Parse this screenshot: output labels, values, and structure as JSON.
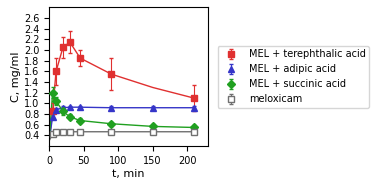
{
  "chart_data": {
    "type": "line",
    "xlabel": "t, min",
    "ylabel": "C, mg/ml",
    "xlim": [
      0,
      230
    ],
    "ylim": [
      0.2,
      2.8
    ],
    "xticks": [
      0,
      50,
      100,
      150,
      200
    ],
    "yticks": [
      0.4,
      0.6,
      0.8,
      1.0,
      1.2,
      1.4,
      1.6,
      1.8,
      2.0,
      2.2,
      2.4,
      2.6
    ],
    "grid": false,
    "legend": "center left",
    "series": [
      {
        "name": "MEL + terephthalic acid",
        "color": "#e03030",
        "marker": "square",
        "x": [
          5,
          10,
          20,
          30,
          45,
          90,
          210
        ],
        "values": [
          0.85,
          1.6,
          2.05,
          2.15,
          1.85,
          1.55,
          1.1
        ],
        "yerr": [
          0.15,
          0.25,
          0.2,
          0.2,
          0.15,
          0.3,
          0.25
        ],
        "curve_x": [
          0,
          5,
          10,
          20,
          30,
          45,
          90,
          150,
          210
        ],
        "curve_values": [
          0.3,
          0.85,
          1.6,
          2.05,
          2.15,
          1.85,
          1.55,
          1.3,
          1.1
        ]
      },
      {
        "name": "MEL + adipic acid",
        "color": "#3535c8",
        "marker": "triangle",
        "x": [
          5,
          10,
          20,
          30,
          45,
          90,
          150,
          210
        ],
        "values": [
          0.75,
          0.88,
          0.92,
          0.93,
          0.93,
          0.92,
          0.92,
          0.92
        ],
        "yerr": [
          0.05,
          0.04,
          0.03,
          0.03,
          0.03,
          0.03,
          0.03,
          0.03
        ],
        "curve_x": [
          0,
          5,
          10,
          20,
          30,
          45,
          90,
          150,
          210
        ],
        "curve_values": [
          0.3,
          0.75,
          0.88,
          0.92,
          0.93,
          0.93,
          0.92,
          0.92,
          0.92
        ]
      },
      {
        "name": "MEL + succinic acid",
        "color": "#20a020",
        "marker": "diamond",
        "x": [
          5,
          10,
          20,
          30,
          45,
          90,
          150,
          210
        ],
        "values": [
          1.2,
          1.05,
          0.85,
          0.75,
          0.68,
          0.62,
          0.57,
          0.55
        ],
        "yerr": [
          0.1,
          0.08,
          0.06,
          0.05,
          0.04,
          0.04,
          0.04,
          0.04
        ],
        "curve_x": [
          0,
          5,
          10,
          20,
          30,
          45,
          90,
          150,
          210
        ],
        "curve_values": [
          0.3,
          1.2,
          1.05,
          0.85,
          0.75,
          0.68,
          0.62,
          0.57,
          0.55
        ]
      },
      {
        "name": "meloxicam",
        "color": "#707070",
        "marker": "open square",
        "x": [
          5,
          10,
          20,
          30,
          45,
          90,
          150,
          210
        ],
        "values": [
          0.43,
          0.46,
          0.47,
          0.47,
          0.47,
          0.47,
          0.47,
          0.47
        ],
        "yerr": [
          0.02,
          0.02,
          0.01,
          0.01,
          0.01,
          0.01,
          0.01,
          0.01
        ],
        "curve_x": [
          0,
          5,
          10,
          20,
          30,
          45,
          90,
          150,
          210
        ],
        "curve_values": [
          0.3,
          0.43,
          0.46,
          0.47,
          0.47,
          0.47,
          0.47,
          0.47,
          0.47
        ]
      }
    ]
  }
}
